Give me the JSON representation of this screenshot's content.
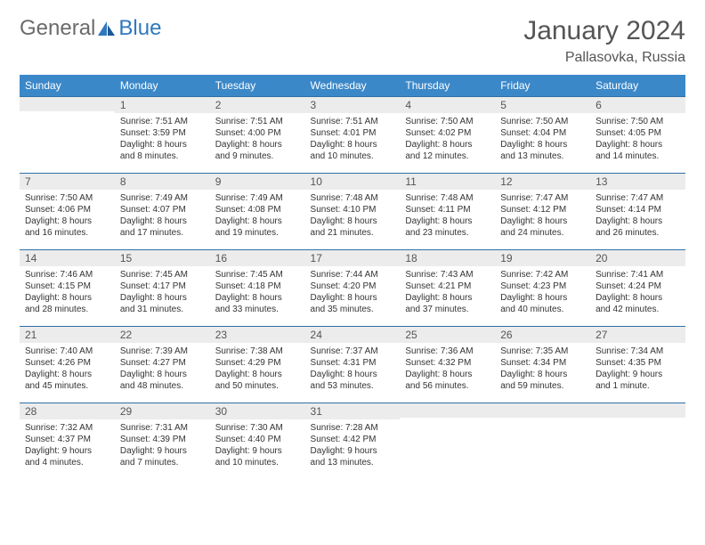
{
  "logo": {
    "text1": "General",
    "text2": "Blue"
  },
  "title": "January 2024",
  "location": "Pallasovka, Russia",
  "colors": {
    "header_bg": "#3b88c9",
    "header_text": "#ffffff",
    "row_border": "#2f6fa8",
    "daynum_bg": "#ececec",
    "daynum_text": "#555555",
    "body_text": "#333333",
    "page_bg": "#ffffff",
    "logo_gray": "#6b6b6b",
    "logo_blue": "#2f78bd"
  },
  "typography": {
    "title_fontsize": 30,
    "location_fontsize": 16,
    "dayheader_fontsize": 12,
    "daynum_fontsize": 12,
    "body_fontsize": 10,
    "logo_fontsize": 24
  },
  "weekdays": [
    "Sunday",
    "Monday",
    "Tuesday",
    "Wednesday",
    "Thursday",
    "Friday",
    "Saturday"
  ],
  "weeks": [
    [
      {
        "num": "",
        "lines": []
      },
      {
        "num": "1",
        "lines": [
          "Sunrise: 7:51 AM",
          "Sunset: 3:59 PM",
          "Daylight: 8 hours",
          "and 8 minutes."
        ]
      },
      {
        "num": "2",
        "lines": [
          "Sunrise: 7:51 AM",
          "Sunset: 4:00 PM",
          "Daylight: 8 hours",
          "and 9 minutes."
        ]
      },
      {
        "num": "3",
        "lines": [
          "Sunrise: 7:51 AM",
          "Sunset: 4:01 PM",
          "Daylight: 8 hours",
          "and 10 minutes."
        ]
      },
      {
        "num": "4",
        "lines": [
          "Sunrise: 7:50 AM",
          "Sunset: 4:02 PM",
          "Daylight: 8 hours",
          "and 12 minutes."
        ]
      },
      {
        "num": "5",
        "lines": [
          "Sunrise: 7:50 AM",
          "Sunset: 4:04 PM",
          "Daylight: 8 hours",
          "and 13 minutes."
        ]
      },
      {
        "num": "6",
        "lines": [
          "Sunrise: 7:50 AM",
          "Sunset: 4:05 PM",
          "Daylight: 8 hours",
          "and 14 minutes."
        ]
      }
    ],
    [
      {
        "num": "7",
        "lines": [
          "Sunrise: 7:50 AM",
          "Sunset: 4:06 PM",
          "Daylight: 8 hours",
          "and 16 minutes."
        ]
      },
      {
        "num": "8",
        "lines": [
          "Sunrise: 7:49 AM",
          "Sunset: 4:07 PM",
          "Daylight: 8 hours",
          "and 17 minutes."
        ]
      },
      {
        "num": "9",
        "lines": [
          "Sunrise: 7:49 AM",
          "Sunset: 4:08 PM",
          "Daylight: 8 hours",
          "and 19 minutes."
        ]
      },
      {
        "num": "10",
        "lines": [
          "Sunrise: 7:48 AM",
          "Sunset: 4:10 PM",
          "Daylight: 8 hours",
          "and 21 minutes."
        ]
      },
      {
        "num": "11",
        "lines": [
          "Sunrise: 7:48 AM",
          "Sunset: 4:11 PM",
          "Daylight: 8 hours",
          "and 23 minutes."
        ]
      },
      {
        "num": "12",
        "lines": [
          "Sunrise: 7:47 AM",
          "Sunset: 4:12 PM",
          "Daylight: 8 hours",
          "and 24 minutes."
        ]
      },
      {
        "num": "13",
        "lines": [
          "Sunrise: 7:47 AM",
          "Sunset: 4:14 PM",
          "Daylight: 8 hours",
          "and 26 minutes."
        ]
      }
    ],
    [
      {
        "num": "14",
        "lines": [
          "Sunrise: 7:46 AM",
          "Sunset: 4:15 PM",
          "Daylight: 8 hours",
          "and 28 minutes."
        ]
      },
      {
        "num": "15",
        "lines": [
          "Sunrise: 7:45 AM",
          "Sunset: 4:17 PM",
          "Daylight: 8 hours",
          "and 31 minutes."
        ]
      },
      {
        "num": "16",
        "lines": [
          "Sunrise: 7:45 AM",
          "Sunset: 4:18 PM",
          "Daylight: 8 hours",
          "and 33 minutes."
        ]
      },
      {
        "num": "17",
        "lines": [
          "Sunrise: 7:44 AM",
          "Sunset: 4:20 PM",
          "Daylight: 8 hours",
          "and 35 minutes."
        ]
      },
      {
        "num": "18",
        "lines": [
          "Sunrise: 7:43 AM",
          "Sunset: 4:21 PM",
          "Daylight: 8 hours",
          "and 37 minutes."
        ]
      },
      {
        "num": "19",
        "lines": [
          "Sunrise: 7:42 AM",
          "Sunset: 4:23 PM",
          "Daylight: 8 hours",
          "and 40 minutes."
        ]
      },
      {
        "num": "20",
        "lines": [
          "Sunrise: 7:41 AM",
          "Sunset: 4:24 PM",
          "Daylight: 8 hours",
          "and 42 minutes."
        ]
      }
    ],
    [
      {
        "num": "21",
        "lines": [
          "Sunrise: 7:40 AM",
          "Sunset: 4:26 PM",
          "Daylight: 8 hours",
          "and 45 minutes."
        ]
      },
      {
        "num": "22",
        "lines": [
          "Sunrise: 7:39 AM",
          "Sunset: 4:27 PM",
          "Daylight: 8 hours",
          "and 48 minutes."
        ]
      },
      {
        "num": "23",
        "lines": [
          "Sunrise: 7:38 AM",
          "Sunset: 4:29 PM",
          "Daylight: 8 hours",
          "and 50 minutes."
        ]
      },
      {
        "num": "24",
        "lines": [
          "Sunrise: 7:37 AM",
          "Sunset: 4:31 PM",
          "Daylight: 8 hours",
          "and 53 minutes."
        ]
      },
      {
        "num": "25",
        "lines": [
          "Sunrise: 7:36 AM",
          "Sunset: 4:32 PM",
          "Daylight: 8 hours",
          "and 56 minutes."
        ]
      },
      {
        "num": "26",
        "lines": [
          "Sunrise: 7:35 AM",
          "Sunset: 4:34 PM",
          "Daylight: 8 hours",
          "and 59 minutes."
        ]
      },
      {
        "num": "27",
        "lines": [
          "Sunrise: 7:34 AM",
          "Sunset: 4:35 PM",
          "Daylight: 9 hours",
          "and 1 minute."
        ]
      }
    ],
    [
      {
        "num": "28",
        "lines": [
          "Sunrise: 7:32 AM",
          "Sunset: 4:37 PM",
          "Daylight: 9 hours",
          "and 4 minutes."
        ]
      },
      {
        "num": "29",
        "lines": [
          "Sunrise: 7:31 AM",
          "Sunset: 4:39 PM",
          "Daylight: 9 hours",
          "and 7 minutes."
        ]
      },
      {
        "num": "30",
        "lines": [
          "Sunrise: 7:30 AM",
          "Sunset: 4:40 PM",
          "Daylight: 9 hours",
          "and 10 minutes."
        ]
      },
      {
        "num": "31",
        "lines": [
          "Sunrise: 7:28 AM",
          "Sunset: 4:42 PM",
          "Daylight: 9 hours",
          "and 13 minutes."
        ]
      },
      {
        "num": "",
        "lines": []
      },
      {
        "num": "",
        "lines": []
      },
      {
        "num": "",
        "lines": []
      }
    ]
  ]
}
